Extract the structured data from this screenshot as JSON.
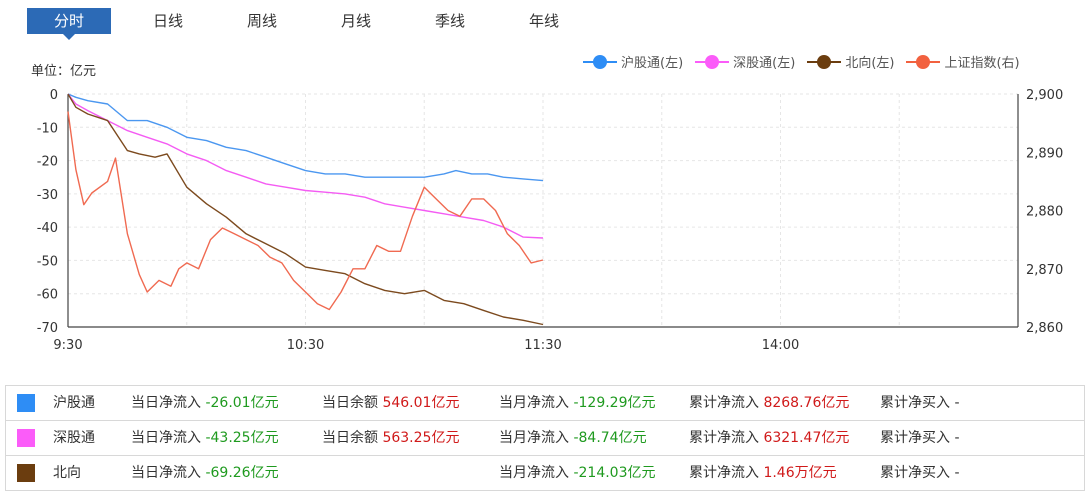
{
  "tabs": [
    "分时",
    "日线",
    "周线",
    "月线",
    "季线",
    "年线"
  ],
  "unit_label": "单位：亿元",
  "colors": {
    "tab_active": "#2c6ab6",
    "hgt": "#4b97f0",
    "sgt": "#f45cf3",
    "north": "#7c4a1e",
    "sse": "#f06a51",
    "negative": "#1f9a1f",
    "positive": "#d01a1a"
  },
  "legend": [
    {
      "label": "沪股通(左)",
      "color": "#2e8df5",
      "icon": "line-dot-marker"
    },
    {
      "label": "深股通(左)",
      "color": "#fb5cf9",
      "icon": "line-dot-marker"
    },
    {
      "label": "北向(左)",
      "color": "#6b3d0f",
      "icon": "line-dot-marker"
    },
    {
      "label": "上证指数(右)",
      "color": "#f2613f",
      "icon": "line-dot-marker"
    }
  ],
  "chart_data": {
    "type": "line",
    "x_ticks": [
      "9:30",
      "10:30",
      "11:30",
      "14:00"
    ],
    "x_range": [
      "9:30",
      "15:00"
    ],
    "y_left": {
      "ticks": [
        0,
        -10,
        -20,
        -30,
        -40,
        -50,
        -60,
        -70
      ],
      "range": [
        -70,
        0
      ]
    },
    "y_right": {
      "ticks": [
        "2,900",
        "2,890",
        "2,880",
        "2,870",
        "2,860"
      ],
      "range": [
        2860,
        2900
      ]
    },
    "grid": true,
    "legend_position": "top-right",
    "series": [
      {
        "name": "沪股通(左)",
        "axis": "left",
        "points": [
          [
            "9:30",
            0
          ],
          [
            "9:32",
            -1
          ],
          [
            "9:35",
            -2
          ],
          [
            "9:40",
            -3
          ],
          [
            "9:45",
            -8
          ],
          [
            "9:50",
            -8
          ],
          [
            "9:55",
            -10
          ],
          [
            "10:00",
            -13
          ],
          [
            "10:05",
            -14
          ],
          [
            "10:10",
            -16
          ],
          [
            "10:15",
            -17
          ],
          [
            "10:20",
            -19
          ],
          [
            "10:25",
            -21
          ],
          [
            "10:30",
            -23
          ],
          [
            "10:35",
            -24
          ],
          [
            "10:40",
            -24
          ],
          [
            "10:45",
            -25
          ],
          [
            "10:50",
            -25
          ],
          [
            "10:55",
            -25
          ],
          [
            "11:00",
            -25
          ],
          [
            "11:05",
            -24
          ],
          [
            "11:08",
            -23
          ],
          [
            "11:12",
            -24
          ],
          [
            "11:16",
            -24
          ],
          [
            "11:20",
            -25
          ],
          [
            "11:25",
            -25.5
          ],
          [
            "11:30",
            -26.01
          ]
        ]
      },
      {
        "name": "深股通(左)",
        "axis": "left",
        "points": [
          [
            "9:30",
            0
          ],
          [
            "9:32",
            -3
          ],
          [
            "9:35",
            -5
          ],
          [
            "9:40",
            -8
          ],
          [
            "9:45",
            -11
          ],
          [
            "9:50",
            -13
          ],
          [
            "9:55",
            -15
          ],
          [
            "10:00",
            -18
          ],
          [
            "10:05",
            -20
          ],
          [
            "10:10",
            -23
          ],
          [
            "10:15",
            -25
          ],
          [
            "10:20",
            -27
          ],
          [
            "10:25",
            -28
          ],
          [
            "10:30",
            -29
          ],
          [
            "10:35",
            -29.5
          ],
          [
            "10:40",
            -30
          ],
          [
            "10:45",
            -31
          ],
          [
            "10:50",
            -33
          ],
          [
            "10:55",
            -34
          ],
          [
            "11:00",
            -35
          ],
          [
            "11:05",
            -36
          ],
          [
            "11:10",
            -37
          ],
          [
            "11:15",
            -38
          ],
          [
            "11:20",
            -40
          ],
          [
            "11:25",
            -43
          ],
          [
            "11:30",
            -43.25
          ]
        ]
      },
      {
        "name": "北向(左)",
        "axis": "left",
        "points": [
          [
            "9:30",
            0
          ],
          [
            "9:32",
            -4
          ],
          [
            "9:35",
            -6
          ],
          [
            "9:40",
            -8
          ],
          [
            "9:45",
            -17
          ],
          [
            "9:48",
            -18
          ],
          [
            "9:52",
            -19
          ],
          [
            "9:55",
            -18
          ],
          [
            "10:00",
            -28
          ],
          [
            "10:05",
            -33
          ],
          [
            "10:10",
            -37
          ],
          [
            "10:15",
            -42
          ],
          [
            "10:20",
            -45
          ],
          [
            "10:25",
            -48
          ],
          [
            "10:30",
            -52
          ],
          [
            "10:35",
            -53
          ],
          [
            "10:40",
            -54
          ],
          [
            "10:45",
            -57
          ],
          [
            "10:50",
            -59
          ],
          [
            "10:55",
            -60
          ],
          [
            "11:00",
            -59
          ],
          [
            "11:05",
            -62
          ],
          [
            "11:10",
            -63
          ],
          [
            "11:15",
            -65
          ],
          [
            "11:20",
            -67
          ],
          [
            "11:25",
            -68
          ],
          [
            "11:30",
            -69.26
          ]
        ]
      },
      {
        "name": "上证指数(右)",
        "axis": "right",
        "points": [
          [
            "9:30",
            2897
          ],
          [
            "9:32",
            2887
          ],
          [
            "9:34",
            2881
          ],
          [
            "9:36",
            2883
          ],
          [
            "9:40",
            2885
          ],
          [
            "9:42",
            2889
          ],
          [
            "9:45",
            2876
          ],
          [
            "9:48",
            2869
          ],
          [
            "9:50",
            2866
          ],
          [
            "9:53",
            2868
          ],
          [
            "9:56",
            2867
          ],
          [
            "9:58",
            2870
          ],
          [
            "10:00",
            2871
          ],
          [
            "10:03",
            2870
          ],
          [
            "10:06",
            2875
          ],
          [
            "10:09",
            2877
          ],
          [
            "10:12",
            2876
          ],
          [
            "10:15",
            2875
          ],
          [
            "10:18",
            2874
          ],
          [
            "10:21",
            2872
          ],
          [
            "10:24",
            2871
          ],
          [
            "10:27",
            2868
          ],
          [
            "10:30",
            2866
          ],
          [
            "10:33",
            2864
          ],
          [
            "10:36",
            2863
          ],
          [
            "10:39",
            2866
          ],
          [
            "10:42",
            2870
          ],
          [
            "10:45",
            2870
          ],
          [
            "10:48",
            2874
          ],
          [
            "10:51",
            2873
          ],
          [
            "10:54",
            2873
          ],
          [
            "10:57",
            2879
          ],
          [
            "11:00",
            2884
          ],
          [
            "11:03",
            2882
          ],
          [
            "11:06",
            2880
          ],
          [
            "11:09",
            2879
          ],
          [
            "11:12",
            2882
          ],
          [
            "11:15",
            2882
          ],
          [
            "11:18",
            2880
          ],
          [
            "11:21",
            2876
          ],
          [
            "11:24",
            2874
          ],
          [
            "11:27",
            2871
          ],
          [
            "11:30",
            2871.5
          ]
        ]
      }
    ]
  },
  "summary_rows": [
    {
      "name": "沪股通",
      "color": "#2e8df5",
      "cells": [
        {
          "label": "当日净流入",
          "value": "-26.01亿元",
          "tone": "neg"
        },
        {
          "label": "当日余额",
          "value": "546.01亿元",
          "tone": "pos"
        },
        {
          "label": "当月净流入",
          "value": "-129.29亿元",
          "tone": "neg"
        },
        {
          "label": "累计净流入",
          "value": "8268.76亿元",
          "tone": "pos"
        },
        {
          "label": "累计净买入",
          "value": "-",
          "tone": "plain"
        }
      ]
    },
    {
      "name": "深股通",
      "color": "#fb5cf9",
      "cells": [
        {
          "label": "当日净流入",
          "value": "-43.25亿元",
          "tone": "neg"
        },
        {
          "label": "当日余额",
          "value": "563.25亿元",
          "tone": "pos"
        },
        {
          "label": "当月净流入",
          "value": "-84.74亿元",
          "tone": "neg"
        },
        {
          "label": "累计净流入",
          "value": "6321.47亿元",
          "tone": "pos"
        },
        {
          "label": "累计净买入",
          "value": "-",
          "tone": "plain"
        }
      ]
    },
    {
      "name": "北向",
      "color": "#6b3d0f",
      "cells": [
        {
          "label": "当日净流入",
          "value": "-69.26亿元",
          "tone": "neg"
        },
        {
          "label": "",
          "value": "",
          "tone": "plain"
        },
        {
          "label": "当月净流入",
          "value": "-214.03亿元",
          "tone": "neg"
        },
        {
          "label": "累计净流入",
          "value": "1.46万亿元",
          "tone": "pos"
        },
        {
          "label": "累计净买入",
          "value": "-",
          "tone": "plain"
        }
      ]
    }
  ]
}
